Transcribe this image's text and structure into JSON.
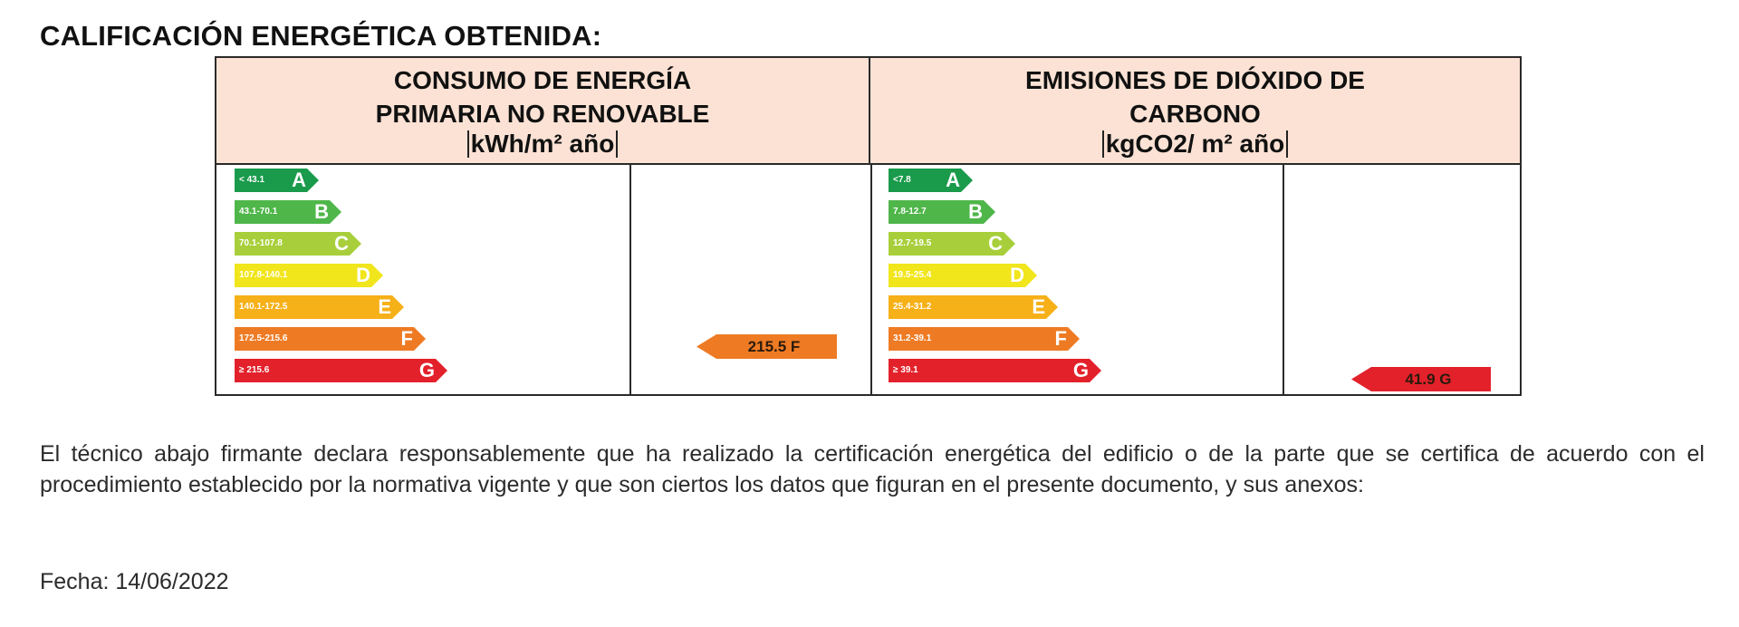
{
  "title": "CALIFICACIÓN ENERGÉTICA OBTENIDA:",
  "energy": {
    "header_line1": "CONSUMO DE ENERGÍA",
    "header_line2": "PRIMARIA NO RENOVABLE",
    "unit": "kWh/m² año",
    "ratings": [
      {
        "letter": "A",
        "range": "< 43.1",
        "color": "#1a9a4b"
      },
      {
        "letter": "B",
        "range": "43.1-70.1",
        "color": "#4fb64a"
      },
      {
        "letter": "C",
        "range": "70.1-107.8",
        "color": "#a8cf3b"
      },
      {
        "letter": "D",
        "range": "107.8-140.1",
        "color": "#f1e51c"
      },
      {
        "letter": "E",
        "range": "140.1-172.5",
        "color": "#f6b018"
      },
      {
        "letter": "F",
        "range": "172.5-215.6",
        "color": "#ee7b24"
      },
      {
        "letter": "G",
        "range": "≥ 215.6",
        "color": "#e3212b"
      }
    ],
    "result": {
      "label": "215.5 F",
      "rating": "F",
      "color": "#ee7b24"
    }
  },
  "co2": {
    "header_line1": "EMISIONES DE DIÓXIDO DE",
    "header_line2": "CARBONO",
    "unit": "kgCO2/ m² año",
    "ratings": [
      {
        "letter": "A",
        "range": "<7.8",
        "color": "#1a9a4b"
      },
      {
        "letter": "B",
        "range": "7.8-12.7",
        "color": "#4fb64a"
      },
      {
        "letter": "C",
        "range": "12.7-19.5",
        "color": "#a8cf3b"
      },
      {
        "letter": "D",
        "range": "19.5-25.4",
        "color": "#f1e51c"
      },
      {
        "letter": "E",
        "range": "25.4-31.2",
        "color": "#f6b018"
      },
      {
        "letter": "F",
        "range": "31.2-39.1",
        "color": "#ee7b24"
      },
      {
        "letter": "G",
        "range": "≥ 39.1",
        "color": "#e3212b"
      }
    ],
    "result": {
      "label": "41.9 G",
      "rating": "G",
      "color": "#e3212b"
    }
  },
  "declaration": "El técnico abajo firmante declara responsablemente que ha realizado la certificación energética del edificio o de la parte que se certifica de acuerdo con el procedimiento establecido por la normativa vigente y que son ciertos los datos que figuran en el presente documento, y sus anexos:",
  "date_label": "Fecha: 14/06/2022"
}
